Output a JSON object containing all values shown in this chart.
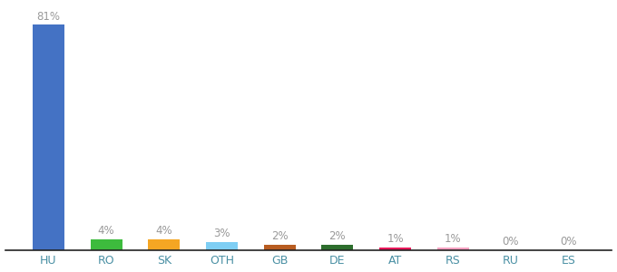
{
  "categories": [
    "HU",
    "RO",
    "SK",
    "OTH",
    "GB",
    "DE",
    "AT",
    "RS",
    "RU",
    "ES"
  ],
  "values": [
    81,
    4,
    4,
    3,
    2,
    2,
    1,
    1,
    0,
    0
  ],
  "labels": [
    "81%",
    "4%",
    "4%",
    "3%",
    "2%",
    "2%",
    "1%",
    "1%",
    "0%",
    "0%"
  ],
  "colors": [
    "#4472c4",
    "#3dbb3d",
    "#f5a623",
    "#7ecef4",
    "#b85c20",
    "#2d6e2d",
    "#e8185a",
    "#f4a0c0",
    "#cccccc",
    "#cccccc"
  ],
  "ylim": [
    0,
    88
  ],
  "background_color": "#ffffff",
  "bar_width": 0.55,
  "label_color": "#999999",
  "tick_color": "#4a90a4",
  "label_fontsize": 8.5,
  "tick_fontsize": 9
}
